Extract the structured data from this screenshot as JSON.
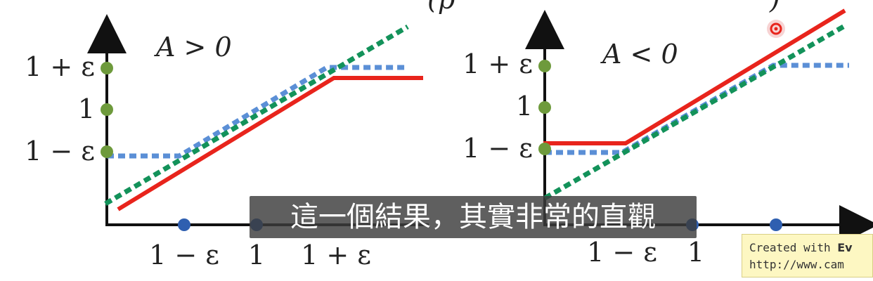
{
  "top_fragment": "(p",
  "top_fragment_right": ")",
  "left_panel": {
    "condition": "A > 0",
    "y_ticks": [
      "1 + ε",
      "1",
      "1 − ε"
    ],
    "x_ticks": [
      "1 − ε",
      "1",
      "1 + ε"
    ]
  },
  "right_panel": {
    "condition": "A < 0",
    "y_ticks": [
      "1 + ε",
      "1",
      "1 − ε"
    ],
    "x_ticks": [
      "1 − ε",
      "1"
    ]
  },
  "legend_colors": {
    "objective_line": "#e8241c",
    "clip_line": "#5b8fd6",
    "ratio_line": "#13925a",
    "tick_dot_y": "#6e9a3c",
    "tick_dot_x": "#2f5fb0"
  },
  "subtitle": "這一個結果，其實非常的直觀",
  "watermark": {
    "line1_prefix": "Created with ",
    "line1_bold": "Ev",
    "line2": "http://www.cam"
  }
}
